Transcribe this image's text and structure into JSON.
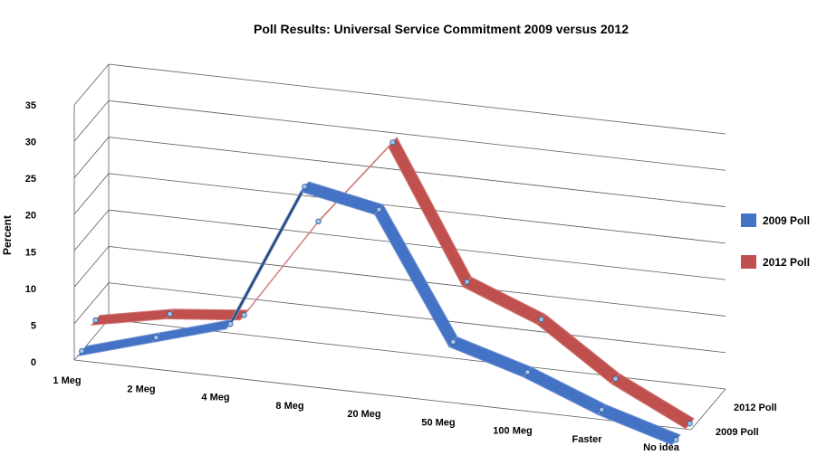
{
  "chart_data": {
    "type": "line",
    "style": "3d-ribbon",
    "title": "Poll Results: Universal Service Commitment 2009 versus 2012",
    "ylabel": "Percent",
    "xlabel": "",
    "ylim": [
      0,
      35
    ],
    "yticks": [
      0,
      5,
      10,
      15,
      20,
      25,
      30,
      35
    ],
    "grid": true,
    "legend_position": "right",
    "categories": [
      "1 Meg",
      "2 Meg",
      "4 Meg",
      "8 Meg",
      "20 Meg",
      "50 Meg",
      "100 Meg",
      "Faster",
      "No idea"
    ],
    "depth_labels": [
      "2012 Poll",
      "2009 Poll"
    ],
    "series": [
      {
        "name": "2009 Poll",
        "color": "#4472c4",
        "values": [
          0,
          3,
          6,
          26,
          24,
          7,
          4,
          0,
          -3
        ]
      },
      {
        "name": "2012 Poll",
        "color": "#c0504d",
        "values": [
          2,
          4,
          5,
          19,
          31,
          13,
          9,
          2,
          -3
        ]
      }
    ]
  }
}
